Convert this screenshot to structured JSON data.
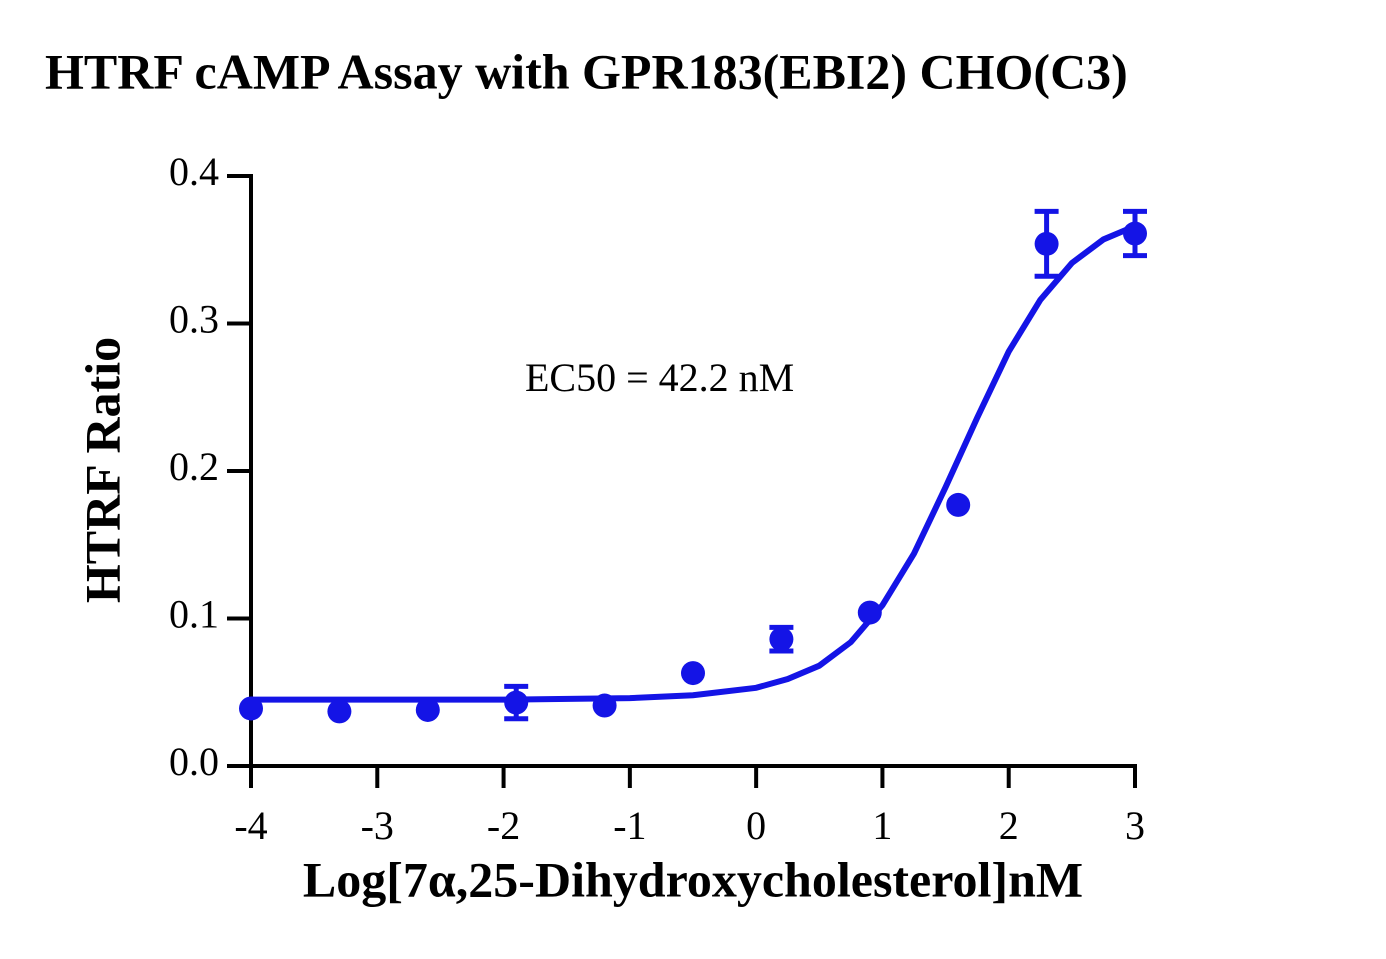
{
  "chart_data": {
    "type": "scatter",
    "title": "HTRF cAMP Assay with GPR183(EBI2) CHO(C3)",
    "xlabel": "Log[7α,25-Dihydroxycholesterol]nM",
    "ylabel": "HTRF Ratio",
    "annotation": "EC50 = 42.2 nM",
    "color": "#1414e6",
    "x": [
      -4,
      -3.3,
      -2.6,
      -1.9,
      -1.2,
      -0.5,
      0.2,
      0.9,
      1.6,
      2.3,
      3
    ],
    "values": [
      0.039,
      0.037,
      0.038,
      0.043,
      0.041,
      0.063,
      0.086,
      0.104,
      0.177,
      0.354,
      0.361
    ],
    "errors": [
      null,
      null,
      null,
      0.011,
      null,
      null,
      0.008,
      null,
      null,
      0.022,
      0.015
    ],
    "fit": {
      "x": [
        -4,
        -3,
        -2,
        -1,
        -0.5,
        0,
        0.25,
        0.5,
        0.75,
        1,
        1.25,
        1.5,
        1.75,
        2,
        2.25,
        2.5,
        2.75,
        3
      ],
      "values": [
        0.045,
        0.045,
        0.045,
        0.046,
        0.048,
        0.053,
        0.059,
        0.068,
        0.084,
        0.109,
        0.144,
        0.189,
        0.236,
        0.281,
        0.316,
        0.341,
        0.357,
        0.366
      ]
    },
    "xlim": [
      -4,
      3
    ],
    "xticks": [
      -4,
      -3,
      -2,
      -1,
      0,
      1,
      2,
      3
    ],
    "ylim": [
      0,
      0.4
    ],
    "yticks": [
      {
        "value": 0,
        "label": "0.0"
      },
      0.1,
      0.2,
      0.3,
      0.4
    ]
  }
}
